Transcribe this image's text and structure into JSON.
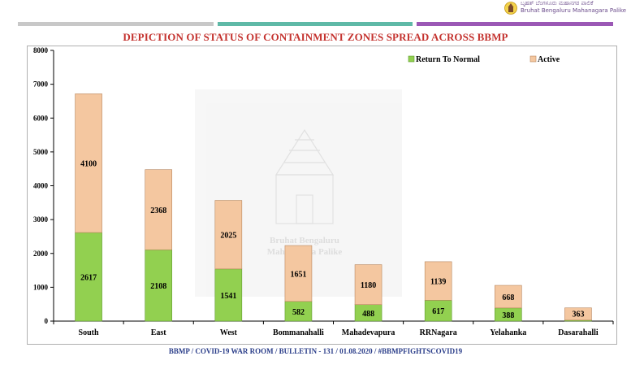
{
  "header": {
    "logo_line_1": "ಬೃಹತ್ ಬೆಂಗಳೂರು ಮಹಾನಗರ ಪಾಲಿಕೆ",
    "logo_line_2": "Bruhat Bengaluru Mahanagara Palike",
    "title": "DEPICTION OF STATUS OF CONTAINMENT ZONES SPREAD ACROSS BBMP"
  },
  "watermark": {
    "line_1": "Bruhat Bengaluru",
    "line_2": "Mahanagara Palike"
  },
  "footer": {
    "text": "BBMP / COVID-19 WAR ROOM / BULLETIN - 131 / 01.08.2020 / #BBMPFIGHTSCOVID19"
  },
  "colors": {
    "return_to_normal": "#92d050",
    "active": "#f4c7a0",
    "title": "#c4322e",
    "footer": "#2b3e8a"
  },
  "chart_data": {
    "type": "bar",
    "stacked": true,
    "categories": [
      "South",
      "East",
      "West",
      "Bommanahalli",
      "Mahadevapura",
      "RRNagara",
      "Yelahanka",
      "Dasarahalli"
    ],
    "series": [
      {
        "name": "Return To Normal",
        "values": [
          2617,
          2108,
          1541,
          582,
          488,
          617,
          388,
          28
        ]
      },
      {
        "name": "Active",
        "values": [
          4100,
          2368,
          2025,
          1651,
          1180,
          1139,
          668,
          363
        ]
      }
    ],
    "ylim": [
      0,
      8000
    ],
    "yticks": [
      "0",
      "1000",
      "2000",
      "3000",
      "4000",
      "5000",
      "6000",
      "7000",
      "8000"
    ],
    "legend_position": "top-right",
    "title": "",
    "xlabel": "",
    "ylabel": ""
  }
}
